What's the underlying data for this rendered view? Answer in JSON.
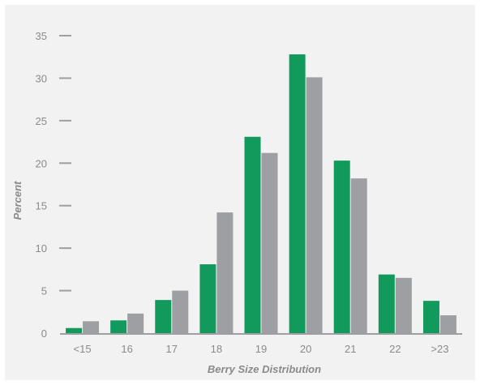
{
  "chart_data": {
    "type": "bar",
    "title": "",
    "xlabel": "Berry Size Distribution",
    "ylabel": "Percent",
    "categories": [
      "<15",
      "16",
      "17",
      "18",
      "19",
      "20",
      "21",
      "22",
      ">23"
    ],
    "series": [
      {
        "values": [
          0.6,
          1.5,
          3.9,
          8.1,
          23.1,
          32.8,
          20.3,
          6.9,
          3.8
        ]
      },
      {
        "values": [
          1.4,
          2.3,
          5.0,
          14.2,
          21.2,
          30.1,
          18.2,
          6.5,
          2.1
        ]
      }
    ],
    "ylim": [
      0,
      35
    ],
    "yticks": [
      0,
      5,
      10,
      15,
      20,
      25,
      30,
      35
    ],
    "grid": false,
    "colors": {
      "series": [
        "#119a5c",
        "#9d9fa2"
      ],
      "axis": "#9d9fa2",
      "text": "#8a8a8a",
      "background": "#f2f2f2"
    }
  }
}
